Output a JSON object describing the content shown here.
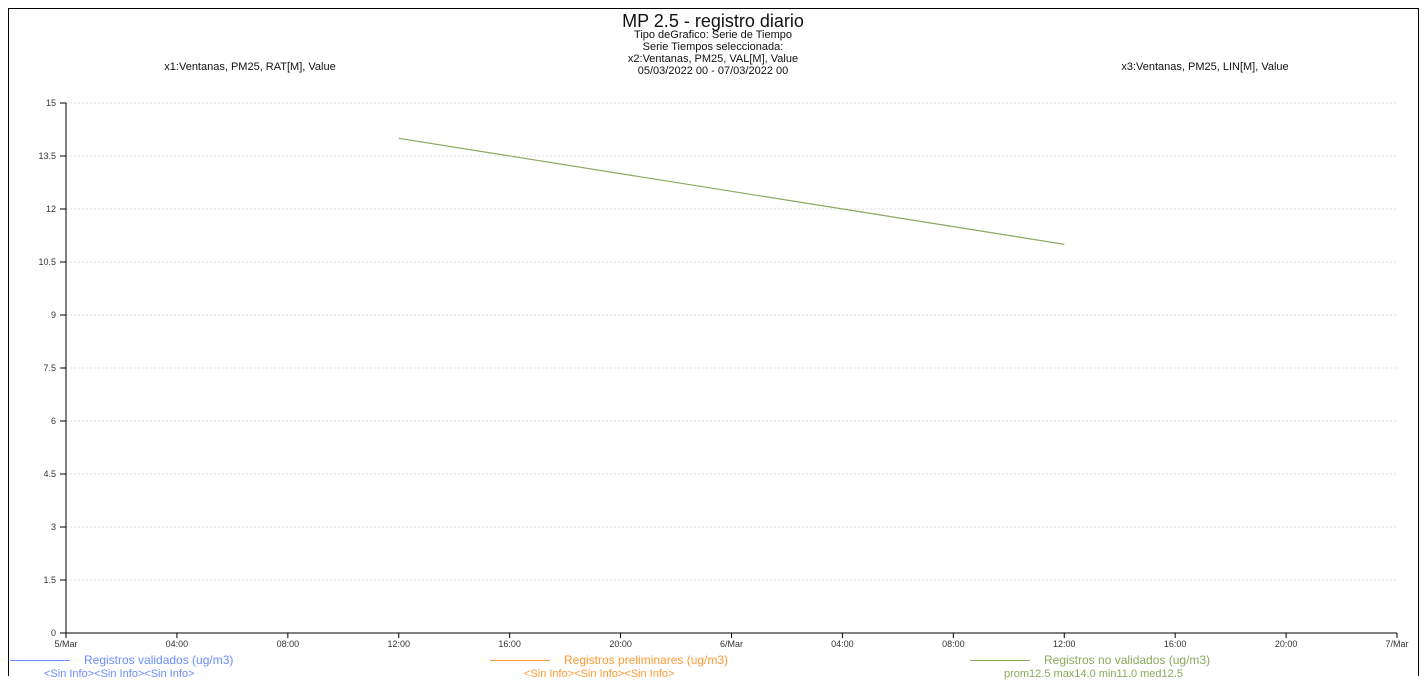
{
  "header": {
    "title": "MP 2.5 - registro diario",
    "subtitle_1": "Tipo deGrafico: Serie de Tiempo",
    "subtitle_2": "Serie Tiempos seleccionada:",
    "x1_label": "x1:Ventanas, PM25, RAT[M], Value",
    "x2_label": "x2:Ventanas, PM25, VAL[M], Value",
    "x3_label": "x3:Ventanas, PM25, LIN[M], Value",
    "date_range": "05/03/2022 00 - 07/03/2022 00"
  },
  "chart_data": {
    "type": "line",
    "title": "MP 2.5 - registro diario",
    "x_ticks": [
      "5/Mar",
      "04:00",
      "08:00",
      "12:00",
      "16:00",
      "20:00",
      "6/Mar",
      "04:00",
      "08:00",
      "12:00",
      "16:00",
      "20:00",
      "7/Mar"
    ],
    "y_ticks": [
      "0",
      "1.5",
      "3",
      "4.5",
      "6",
      "7.5",
      "9",
      "10.5",
      "12",
      "13.5",
      "15"
    ],
    "xlim": [
      "2022-03-05 00:00",
      "2022-03-07 00:00"
    ],
    "ylim": [
      0,
      15
    ],
    "grid": true,
    "series": [
      {
        "name": "Registros validados (ug/m3)",
        "color": "#6a8cff",
        "x": [],
        "y": []
      },
      {
        "name": "Registros preliminares (ug/m3)",
        "color": "#ff9a33",
        "x": [],
        "y": []
      },
      {
        "name": "Registros no validados (ug/m3)",
        "color": "#8aa85a",
        "x": [
          "2022-03-05 12:00",
          "2022-03-06 12:00"
        ],
        "y": [
          14,
          11
        ]
      }
    ]
  },
  "legend": [
    {
      "label": "Registros validados (ug/m3)",
      "sub": "<Sin Info><Sin Info><Sin Info>",
      "color": "#6a8cff"
    },
    {
      "label": "Registros preliminares (ug/m3)",
      "sub": "<Sin Info><Sin Info><Sin Info>",
      "color": "#ff9a33"
    },
    {
      "label": "Registros no validados (ug/m3)",
      "sub": "prom12.5 max14.0 min11.0 med12.5",
      "color": "#8aa85a"
    }
  ]
}
